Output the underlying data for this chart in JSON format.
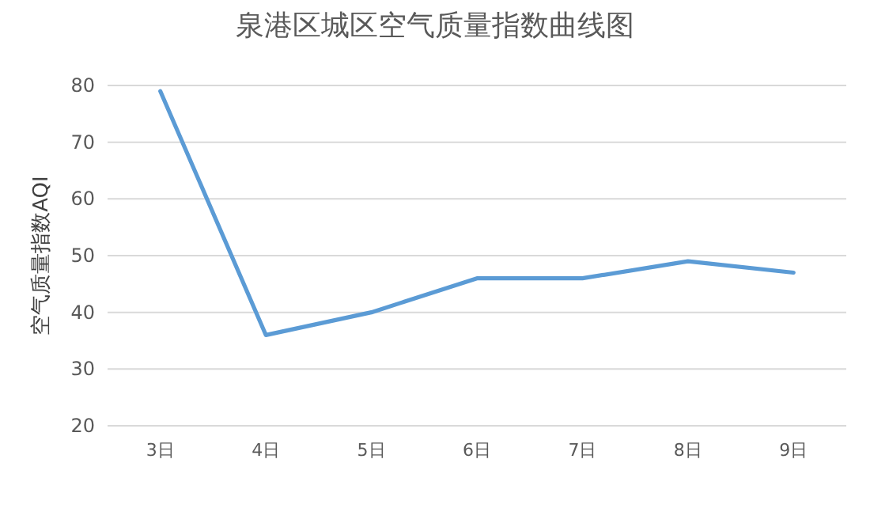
{
  "chart_data": {
    "type": "line",
    "title": "泉港区城区空气质量指数曲线图",
    "ylabel": "空气质量指数AQI",
    "categories": [
      "3日",
      "4日",
      "5日",
      "6日",
      "7日",
      "8日",
      "9日"
    ],
    "series": [
      {
        "color": "#5b9bd5",
        "values": [
          79,
          36,
          40,
          46,
          46,
          49,
          47
        ]
      }
    ],
    "ylim": [
      20,
      80
    ],
    "yticks": [
      20,
      30,
      40,
      50,
      60,
      70,
      80
    ],
    "grid": "y"
  }
}
